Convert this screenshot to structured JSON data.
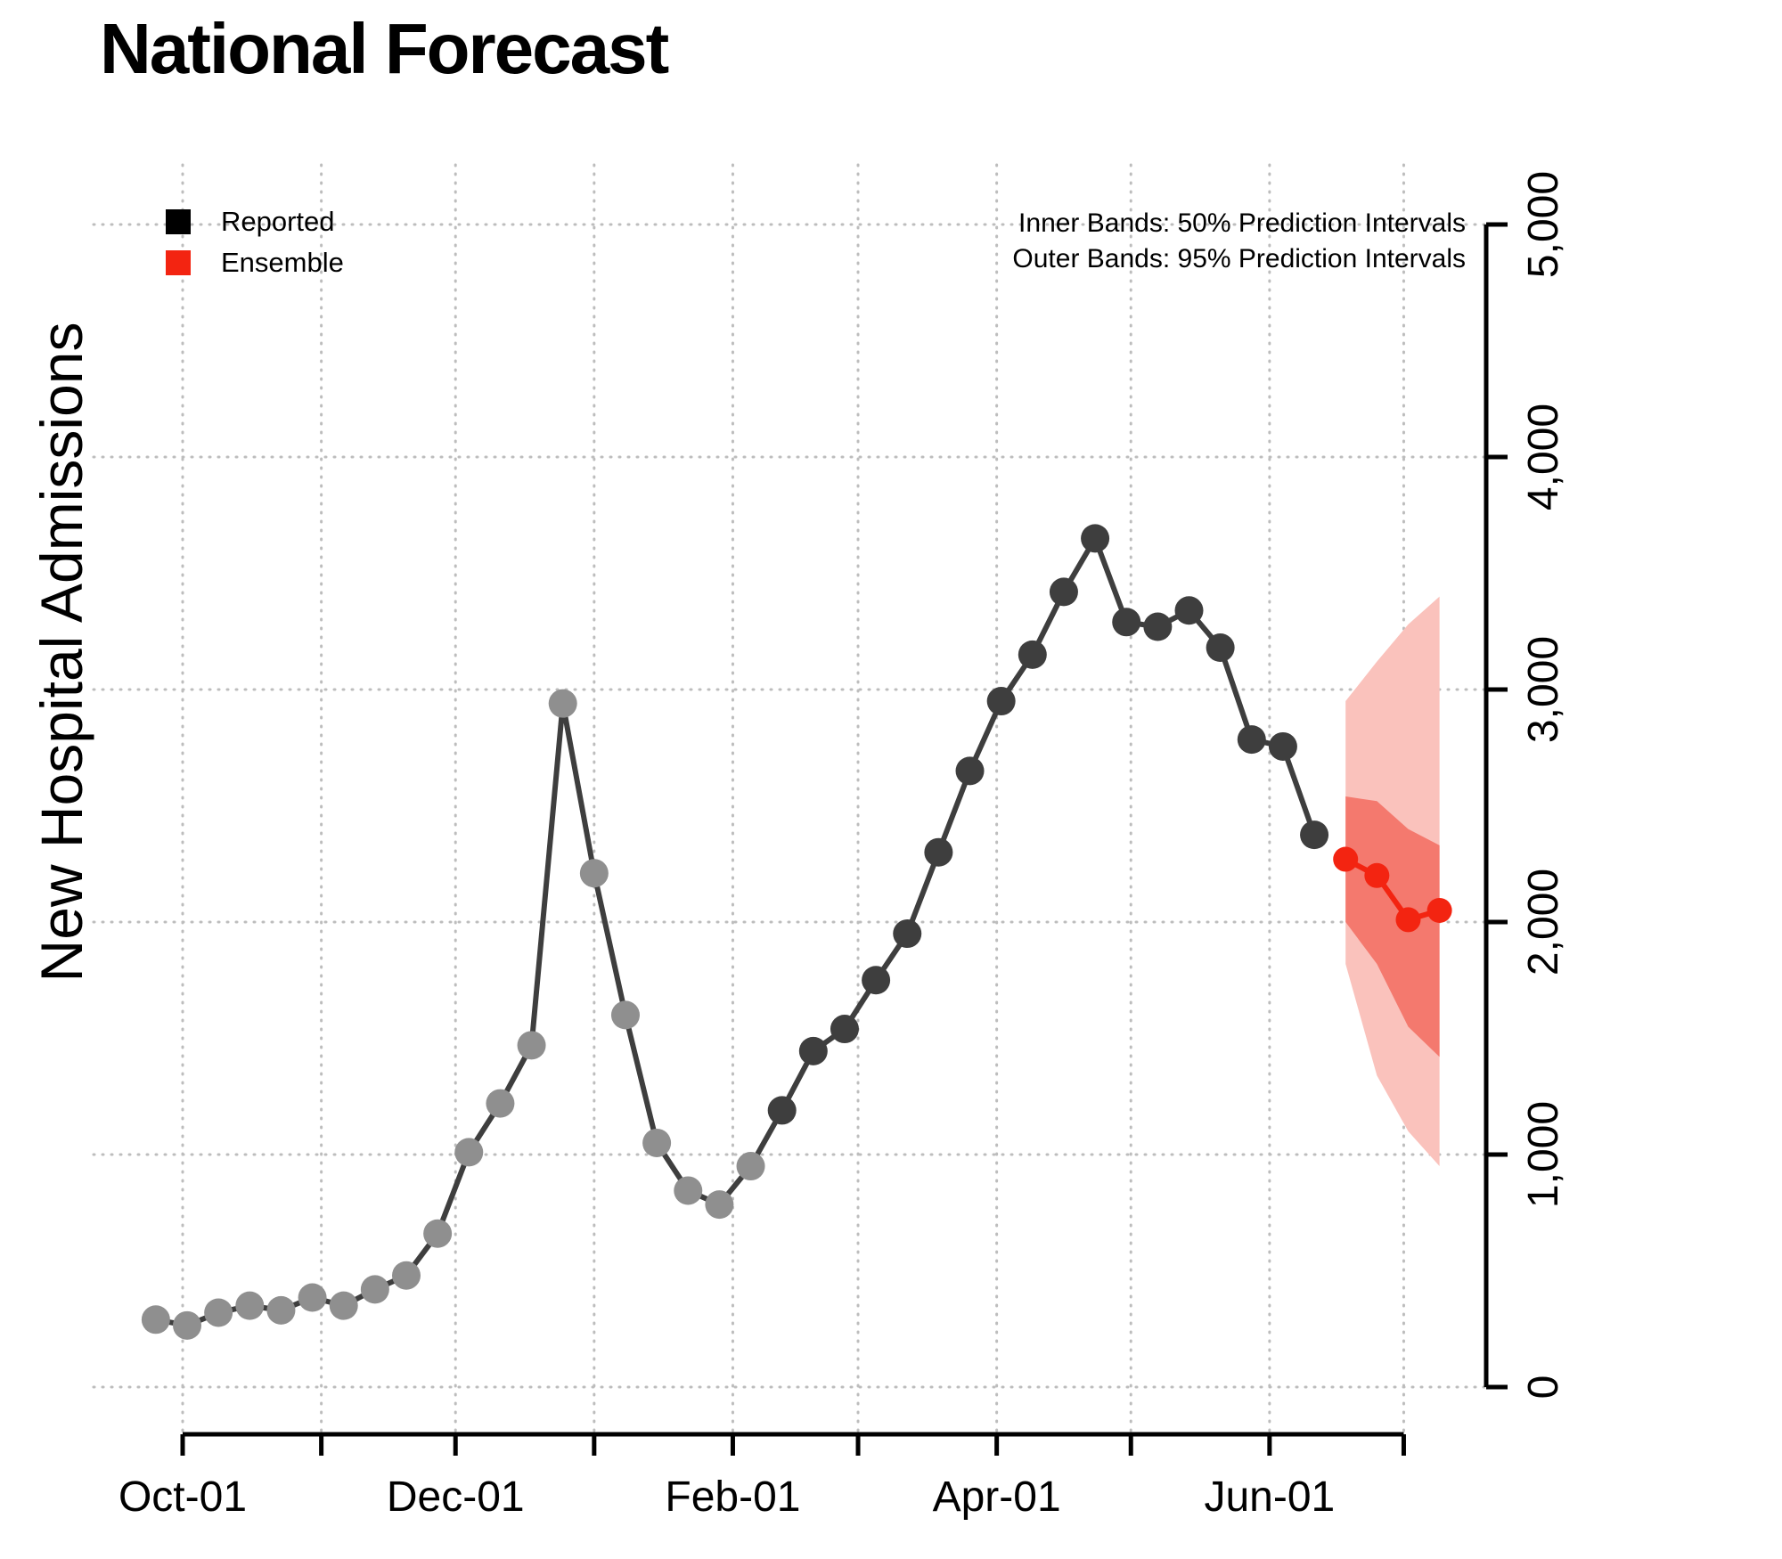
{
  "title": "National Forecast",
  "y_axis": {
    "title": "New Hospital Admissions"
  },
  "legend": {
    "reported": "Reported",
    "ensemble": "Ensemble"
  },
  "annotations": {
    "inner": "Inner Bands: 50% Prediction Intervals",
    "outer": "Outer Bands: 95% Prediction Intervals"
  },
  "colors": {
    "reported_marker_light": "#8F8F8F",
    "reported_marker_dark": "#3E3E3E",
    "reported_line": "#3E3E3E",
    "ensemble": "#F32411",
    "band_inner": "#F4796E",
    "band_outer": "#FAC2BC",
    "gridline": "#BDBDBD",
    "axis": "#000000"
  },
  "chart_data": {
    "type": "line",
    "title": "National Forecast",
    "xlabel": "",
    "ylabel": "New Hospital Admissions",
    "ylim": [
      0,
      5000
    ],
    "grid": true,
    "legend_position": "top-left",
    "y_ticks": [
      {
        "value": 0,
        "label": "0"
      },
      {
        "value": 1000,
        "label": "1,000"
      },
      {
        "value": 2000,
        "label": "2,000"
      },
      {
        "value": 3000,
        "label": "3,000"
      },
      {
        "value": 4000,
        "label": "4,000"
      },
      {
        "value": 5000,
        "label": "5,000"
      }
    ],
    "x_ticks": [
      {
        "day": 0,
        "label": "Oct-01"
      },
      {
        "day": 31,
        "label": ""
      },
      {
        "day": 61,
        "label": "Dec-01"
      },
      {
        "day": 92,
        "label": ""
      },
      {
        "day": 123,
        "label": "Feb-01"
      },
      {
        "day": 151,
        "label": ""
      },
      {
        "day": 182,
        "label": "Apr-01"
      },
      {
        "day": 212,
        "label": ""
      },
      {
        "day": 243,
        "label": "Jun-01"
      },
      {
        "day": 273,
        "label": ""
      }
    ],
    "series": [
      {
        "name": "Reported",
        "start_day": -6,
        "interval_days": 7,
        "dark_from_index": 20,
        "values": [
          290,
          265,
          320,
          350,
          330,
          385,
          350,
          420,
          480,
          660,
          1010,
          1220,
          1470,
          2940,
          2210,
          1600,
          1050,
          845,
          785,
          950,
          1190,
          1445,
          1540,
          1750,
          1950,
          2300,
          2650,
          2950,
          3150,
          3420,
          3650,
          3290,
          3270,
          3340,
          3180,
          2785,
          2755,
          2375
        ]
      },
      {
        "name": "Ensemble",
        "start_day": 260,
        "interval_days": 7,
        "values": [
          2270,
          2200,
          2010,
          2050
        ]
      }
    ],
    "prediction_intervals": {
      "start_day": 260,
      "interval_days": 7,
      "pi50": {
        "lower": [
          2000,
          1820,
          1550,
          1420
        ],
        "upper": [
          2540,
          2520,
          2400,
          2330
        ]
      },
      "pi95": {
        "lower": [
          1820,
          1340,
          1100,
          950
        ],
        "upper": [
          2950,
          3120,
          3280,
          3400
        ]
      }
    }
  }
}
